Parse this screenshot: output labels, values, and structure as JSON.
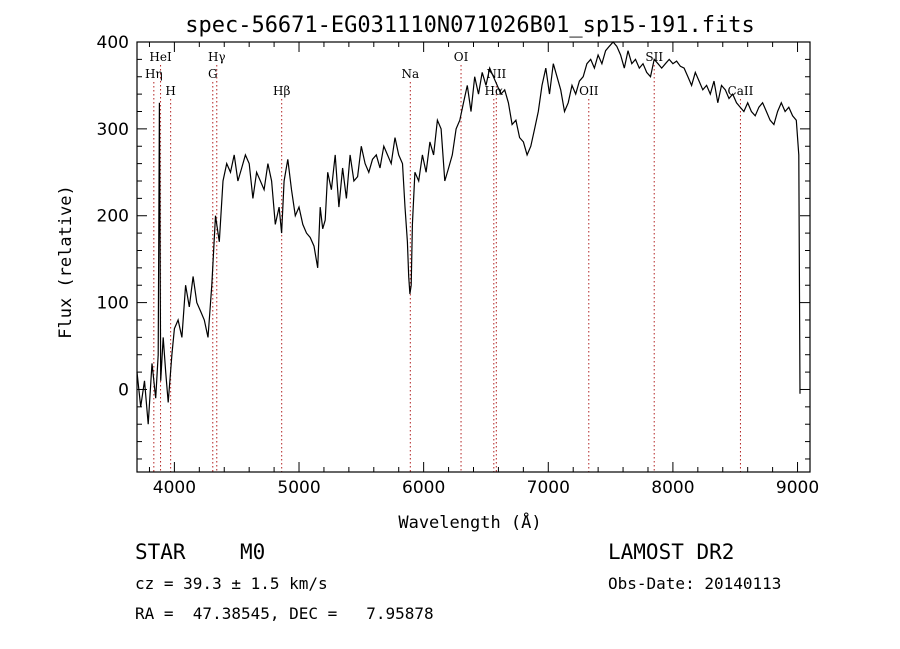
{
  "chart_data": {
    "type": "line",
    "title": "spec-56671-EG031110N071026B01_sp15-191.fits",
    "xlabel": "Wavelength (Å)",
    "ylabel": "Flux (relative)",
    "xlim": [
      3700,
      9100
    ],
    "ylim": [
      -95,
      400
    ],
    "xticks": [
      4000,
      5000,
      6000,
      7000,
      8000,
      9000
    ],
    "yticks": [
      0,
      100,
      200,
      300,
      400
    ],
    "grid": false,
    "series": [
      {
        "x": [
          3700,
          3730,
          3760,
          3790,
          3820,
          3850,
          3870,
          3880,
          3890,
          3910,
          3930,
          3950,
          3980,
          4000,
          4030,
          4060,
          4090,
          4120,
          4150,
          4180,
          4210,
          4240,
          4270,
          4300,
          4330,
          4360,
          4390,
          4420,
          4450,
          4480,
          4510,
          4540,
          4570,
          4600,
          4630,
          4660,
          4690,
          4720,
          4750,
          4780,
          4810,
          4840,
          4860,
          4880,
          4910,
          4940,
          4970,
          5000,
          5030,
          5060,
          5090,
          5120,
          5150,
          5170,
          5190,
          5210,
          5230,
          5260,
          5290,
          5320,
          5350,
          5380,
          5410,
          5440,
          5470,
          5500,
          5530,
          5560,
          5590,
          5620,
          5650,
          5680,
          5710,
          5740,
          5770,
          5800,
          5830,
          5850,
          5870,
          5880,
          5890,
          5900,
          5910,
          5930,
          5960,
          5990,
          6020,
          6050,
          6080,
          6110,
          6140,
          6170,
          6200,
          6230,
          6260,
          6290,
          6320,
          6350,
          6380,
          6410,
          6440,
          6470,
          6500,
          6530,
          6560,
          6590,
          6620,
          6650,
          6680,
          6710,
          6740,
          6770,
          6800,
          6830,
          6860,
          6890,
          6920,
          6950,
          6980,
          7010,
          7040,
          7070,
          7100,
          7130,
          7160,
          7190,
          7220,
          7250,
          7280,
          7310,
          7340,
          7370,
          7400,
          7430,
          7460,
          7490,
          7520,
          7550,
          7580,
          7610,
          7640,
          7670,
          7700,
          7730,
          7760,
          7790,
          7820,
          7850,
          7880,
          7910,
          7940,
          7970,
          8000,
          8030,
          8060,
          8090,
          8120,
          8150,
          8180,
          8210,
          8240,
          8270,
          8300,
          8330,
          8360,
          8390,
          8420,
          8450,
          8480,
          8510,
          8540,
          8570,
          8600,
          8630,
          8660,
          8690,
          8720,
          8750,
          8780,
          8810,
          8840,
          8870,
          8900,
          8930,
          8960,
          8990,
          9010,
          9020
        ],
        "values": [
          20,
          -20,
          10,
          -40,
          30,
          -10,
          40,
          330,
          10,
          60,
          20,
          -15,
          40,
          70,
          80,
          60,
          120,
          95,
          130,
          100,
          90,
          80,
          60,
          120,
          200,
          170,
          240,
          260,
          250,
          270,
          240,
          255,
          270,
          260,
          220,
          250,
          240,
          230,
          260,
          240,
          190,
          210,
          180,
          240,
          265,
          230,
          200,
          210,
          190,
          180,
          175,
          165,
          140,
          210,
          185,
          195,
          250,
          230,
          270,
          210,
          255,
          220,
          270,
          240,
          245,
          280,
          260,
          250,
          265,
          270,
          255,
          280,
          270,
          260,
          290,
          270,
          260,
          210,
          170,
          130,
          110,
          120,
          190,
          250,
          240,
          270,
          250,
          285,
          270,
          310,
          300,
          240,
          255,
          270,
          300,
          310,
          330,
          350,
          320,
          360,
          340,
          365,
          350,
          370,
          360,
          350,
          340,
          345,
          330,
          305,
          310,
          290,
          285,
          270,
          280,
          300,
          320,
          350,
          370,
          340,
          375,
          360,
          345,
          320,
          330,
          350,
          340,
          355,
          360,
          375,
          380,
          370,
          385,
          375,
          390,
          395,
          400,
          395,
          385,
          370,
          390,
          375,
          380,
          370,
          375,
          365,
          360,
          380,
          375,
          370,
          375,
          380,
          375,
          378,
          372,
          370,
          360,
          350,
          365,
          355,
          345,
          350,
          340,
          355,
          330,
          350,
          345,
          335,
          340,
          330,
          325,
          320,
          330,
          320,
          315,
          325,
          330,
          320,
          310,
          305,
          320,
          330,
          320,
          325,
          315,
          310,
          270,
          -5
        ]
      }
    ],
    "spectral_lines": [
      {
        "label": "Hη",
        "x": 3835,
        "row": 2
      },
      {
        "label": "HeI",
        "x": 3889,
        "row": 1
      },
      {
        "label": "H",
        "x": 3970,
        "row": 3
      },
      {
        "label": "Hγ",
        "x": 4340,
        "row": 1
      },
      {
        "label": "G",
        "x": 4308,
        "row": 2
      },
      {
        "label": "Hβ",
        "x": 4861,
        "row": 3
      },
      {
        "label": "Na",
        "x": 5893,
        "row": 2
      },
      {
        "label": "OI",
        "x": 6300,
        "row": 1
      },
      {
        "label": "NII",
        "x": 6583,
        "row": 2
      },
      {
        "label": "Hα",
        "x": 6563,
        "row": 3
      },
      {
        "label": "OII",
        "x": 7325,
        "row": 3
      },
      {
        "label": "SII",
        "x": 7850,
        "row": 1
      },
      {
        "label": "CaII",
        "x": 8542,
        "row": 3
      }
    ]
  },
  "info": {
    "object_type": "STAR",
    "subclass": "M0",
    "survey": "LAMOST DR2",
    "redshift": "cz = 39.3 ± 1.5 km/s",
    "obs_date": "Obs-Date: 20140113",
    "coords": "RA =  47.38545, DEC =   7.95878"
  }
}
